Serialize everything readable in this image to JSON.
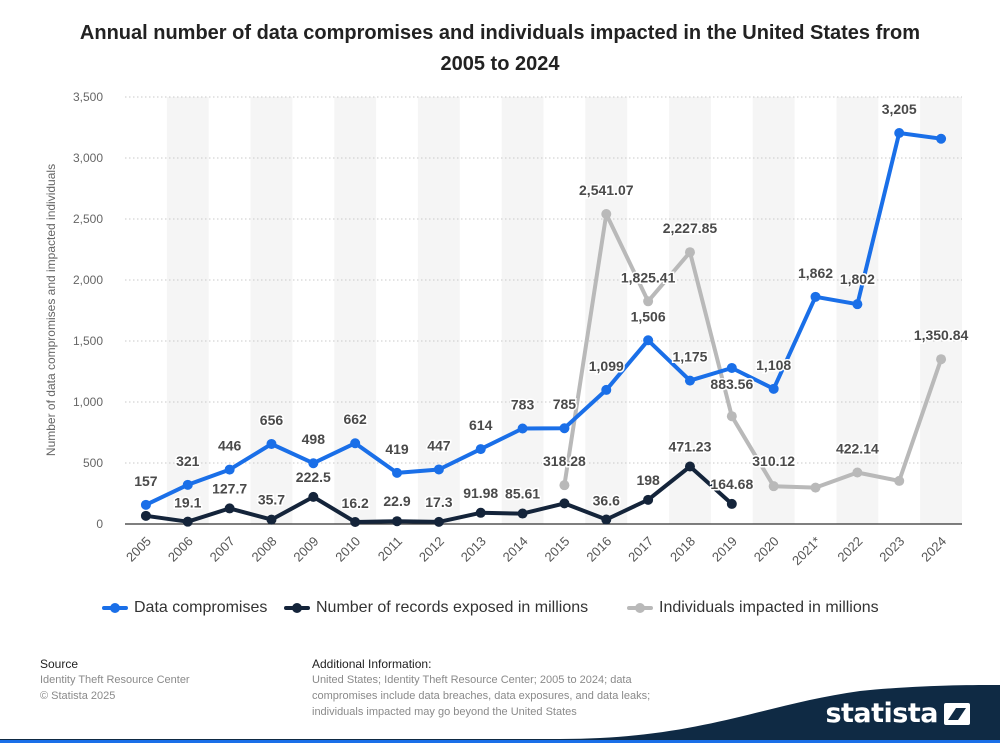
{
  "title": "Annual number of data compromises and individuals impacted in the United States from 2005 to 2024",
  "chart_data": {
    "type": "line",
    "title": "Annual number of data compromises and individuals impacted in the United States from 2005 to 2024",
    "xlabel": "",
    "ylabel": "Number of data compromises and impacted individuals",
    "ylim": [
      0,
      3500
    ],
    "yticks": [
      0,
      500,
      1000,
      1500,
      2000,
      2500,
      3000,
      3500
    ],
    "ytick_labels": [
      "0",
      "500",
      "1,000",
      "1,500",
      "2,000",
      "2,500",
      "3,000",
      "3,500"
    ],
    "categories": [
      "2005",
      "2006",
      "2007",
      "2008",
      "2009",
      "2010",
      "2011",
      "2012",
      "2013",
      "2014",
      "2015",
      "2016",
      "2017",
      "2018",
      "2019",
      "2020",
      "2021*",
      "2022",
      "2023",
      "2024"
    ],
    "grid": true,
    "legend_position": "bottom",
    "series": [
      {
        "name": "Data compromises",
        "color": "#1a6fe8",
        "values": [
          157,
          321,
          446,
          656,
          498,
          662,
          419,
          447,
          614,
          783,
          785,
          1099,
          1506,
          1175,
          1279,
          1108,
          1862,
          1802,
          3205,
          3158
        ],
        "labels": [
          "157",
          "321",
          "446",
          "656",
          "498",
          "662",
          "419",
          "447",
          "614",
          "783",
          "785",
          "1,099",
          "1,506",
          "1,175",
          null,
          "1,108",
          "1,862",
          "1,802",
          "3,205",
          null
        ]
      },
      {
        "name": "Number of records exposed in millions",
        "color": "#14243a",
        "values": [
          66.9,
          19.1,
          127.7,
          35.7,
          222.5,
          16.2,
          22.9,
          17.3,
          91.98,
          85.61,
          169.07,
          36.6,
          198,
          471.23,
          164.68,
          null,
          null,
          null,
          null,
          null
        ],
        "labels": [
          null,
          "19.1",
          "127.7",
          "35.7",
          "222.5",
          "16.2",
          "22.9",
          "17.3",
          "91.98",
          "85.61",
          null,
          "36.6",
          "198",
          "471.23",
          "164.68",
          null,
          null,
          null,
          null,
          null
        ]
      },
      {
        "name": "Individuals impacted in millions",
        "color": "#b9b9b9",
        "values": [
          null,
          null,
          null,
          null,
          null,
          null,
          null,
          null,
          null,
          null,
          318.28,
          2541.07,
          1825.41,
          2227.85,
          883.56,
          310.12,
          298.0,
          422.14,
          353.0,
          1350.84
        ],
        "labels": [
          null,
          null,
          null,
          null,
          null,
          null,
          null,
          null,
          null,
          null,
          "318.28",
          "2,541.07",
          "1,825.41",
          "2,227.85",
          "883.56",
          "310.12",
          null,
          "422.14",
          null,
          "1,350.84"
        ]
      }
    ]
  },
  "footer": {
    "source_heading": "Source",
    "source_lines": [
      "Identity Theft Resource Center",
      "© Statista 2025"
    ],
    "info_heading": "Additional Information:",
    "info_lines": [
      "United States; Identity Theft Resource Center; 2005 to 2024; data",
      "compromises include data breaches, data exposures, and data leaks;",
      "individuals impacted may go beyond the United States"
    ]
  },
  "brand": {
    "name": "statista"
  }
}
